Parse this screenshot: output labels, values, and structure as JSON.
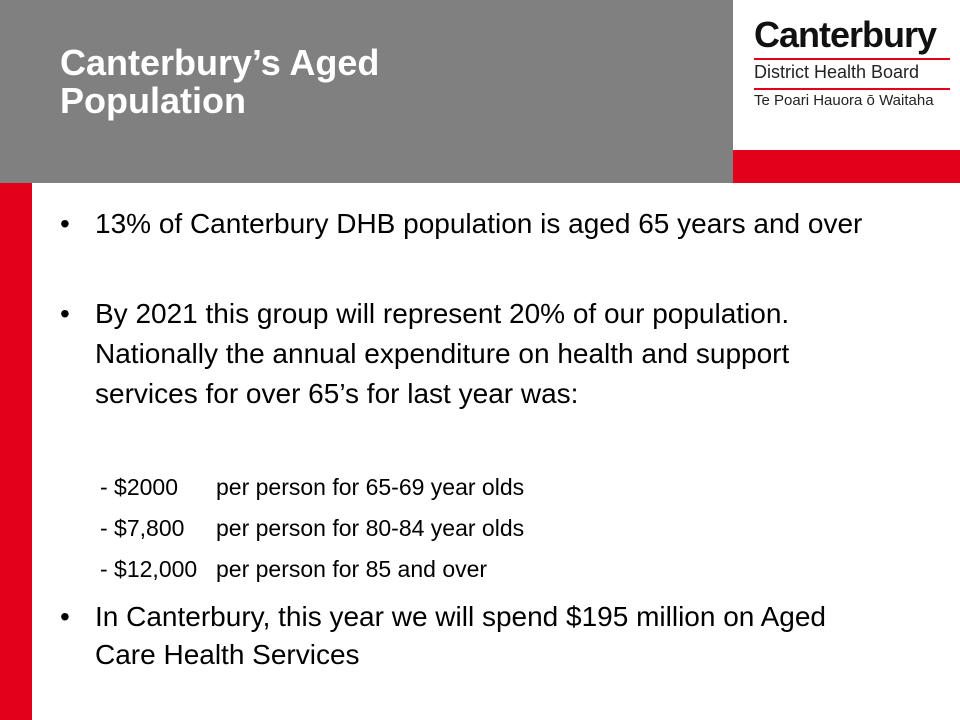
{
  "header": {
    "title": "Canterbury’s Aged Population"
  },
  "logo": {
    "name": "Canterbury",
    "line1": "District Health Board",
    "line2": "Te Poari Hauora ō Waitaha"
  },
  "bullets": [
    "13% of Canterbury DHB population is aged 65 years and over",
    "By 2021 this group will represent 20% of our population.  Nationally the annual expenditure on health and support services for over 65’s for last year was:"
  ],
  "costs": [
    {
      "amount": "- $2000",
      "text": "per person for 65-69 year olds"
    },
    {
      "amount": "- $7,800",
      "text": "per person for 80-84 year olds"
    },
    {
      "amount": "- $12,000",
      "text": "per person for 85 and over"
    }
  ],
  "closing": "In Canterbury, this year we will spend $195 million on Aged Care Health Services"
}
